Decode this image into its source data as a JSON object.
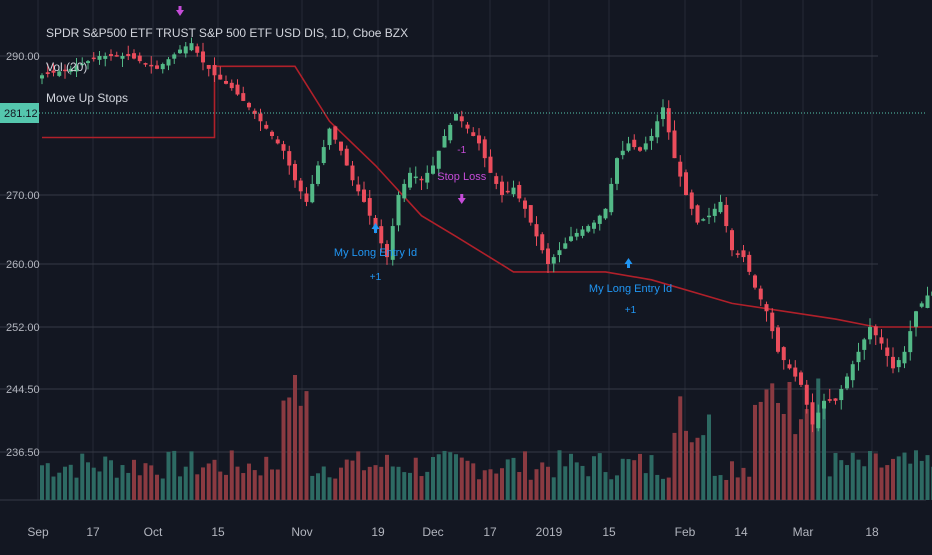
{
  "header": {
    "title": "SPDR S&P500 ETF TRUST S&P 500 ETF USD DIS, 1D, Cboe BZX",
    "volume_label": "Vol (20)",
    "study_label": "Move Up Stops"
  },
  "price_badge": "281.12",
  "colors": {
    "background": "#131722",
    "grid": "#363a45",
    "up": "#53b987",
    "down": "#eb4d5c",
    "volume_up": "#2d6a63",
    "volume_down": "#8a3a41",
    "stop_line": "#b0202a",
    "last_price_line": "#55c7ae",
    "entry_signal": "#2196f3",
    "exit_signal": "#c54cd8",
    "axis_text": "#b2b5be"
  },
  "chart_data": {
    "type": "candlestick",
    "y_ticks": [
      "290.00",
      "270.00",
      "260.00",
      "252.00",
      "244.50",
      "236.50"
    ],
    "x_ticks": [
      "Sep",
      "17",
      "Oct",
      "15",
      "Nov",
      "19",
      "Dec",
      "17",
      "2019",
      "15",
      "Feb",
      "14",
      "Mar",
      "18"
    ],
    "last_price": 281.12,
    "annotations": [
      {
        "text": "My Long Entry Id",
        "qty": "+1",
        "type": "entry"
      },
      {
        "text": "Stop Loss",
        "qty": "-1",
        "type": "exit"
      },
      {
        "text": "My Long Entry Id",
        "qty": "+1",
        "type": "entry"
      }
    ]
  }
}
